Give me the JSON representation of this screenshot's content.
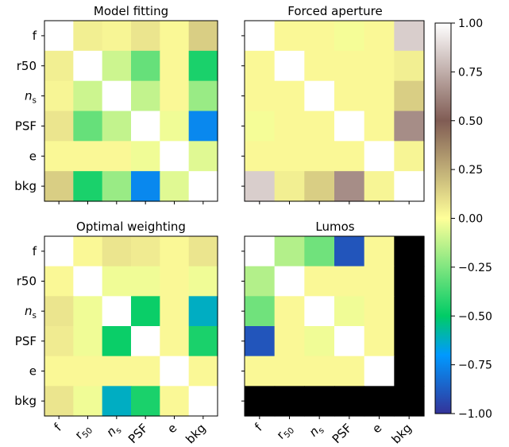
{
  "chart_data": {
    "type": "heatmap",
    "colormap": "terrain",
    "colorbar": {
      "vmin": -1.0,
      "vmax": 1.0,
      "tick_labels": [
        "1.00",
        "0.75",
        "0.50",
        "0.25",
        "0.00",
        "−0.25",
        "−0.50",
        "−0.75",
        "−1.00"
      ],
      "tick_values": [
        1.0,
        0.75,
        0.5,
        0.25,
        0.0,
        -0.25,
        -0.5,
        -0.75,
        -1.0
      ]
    },
    "row_labels": [
      "f",
      "r50",
      "n_s",
      "PSF",
      "e",
      "bkg"
    ],
    "col_labels": [
      "f",
      "r_50",
      "n_s",
      "PSF",
      "e",
      "bkg"
    ],
    "panels": [
      {
        "title": "Model fitting",
        "matrix": [
          [
            1.0,
            0.05,
            0.03,
            0.08,
            0.02,
            0.15
          ],
          [
            0.05,
            1.0,
            -0.1,
            -0.3,
            0.02,
            -0.45
          ],
          [
            0.03,
            -0.1,
            1.0,
            -0.12,
            0.02,
            -0.2
          ],
          [
            0.08,
            -0.3,
            -0.12,
            1.0,
            -0.03,
            -0.75
          ],
          [
            0.02,
            0.02,
            0.02,
            -0.03,
            1.0,
            -0.06
          ],
          [
            0.15,
            -0.45,
            -0.2,
            -0.75,
            -0.06,
            1.0
          ]
        ]
      },
      {
        "title": "Forced aperture",
        "matrix": [
          [
            1.0,
            0.02,
            0.02,
            -0.02,
            0.02,
            0.85
          ],
          [
            0.02,
            1.0,
            0.02,
            0.02,
            0.02,
            0.05
          ],
          [
            0.02,
            0.02,
            1.0,
            0.02,
            0.02,
            0.15
          ],
          [
            -0.02,
            0.02,
            0.02,
            1.0,
            0.02,
            0.65
          ],
          [
            0.02,
            0.02,
            0.02,
            0.02,
            1.0,
            0.03
          ],
          [
            0.85,
            0.05,
            0.15,
            0.65,
            0.03,
            1.0
          ]
        ]
      },
      {
        "title": "Optimal weighting",
        "matrix": [
          [
            1.0,
            0.02,
            0.08,
            0.06,
            0.02,
            0.08
          ],
          [
            0.02,
            1.0,
            -0.03,
            -0.03,
            0.02,
            -0.03
          ],
          [
            0.08,
            -0.03,
            1.0,
            -0.48,
            0.02,
            -0.62
          ],
          [
            0.06,
            -0.03,
            -0.48,
            1.0,
            0.02,
            -0.45
          ],
          [
            0.02,
            0.02,
            0.02,
            0.02,
            1.0,
            0.02
          ],
          [
            0.08,
            -0.03,
            -0.62,
            -0.45,
            0.02,
            1.0
          ]
        ]
      },
      {
        "title": "Lumos",
        "masked_value": "NaN",
        "matrix": [
          [
            1.0,
            -0.15,
            -0.28,
            -0.9,
            0.02,
            "NaN"
          ],
          [
            -0.15,
            1.0,
            0.02,
            0.02,
            0.02,
            "NaN"
          ],
          [
            -0.28,
            0.02,
            1.0,
            -0.03,
            0.02,
            "NaN"
          ],
          [
            -0.9,
            0.02,
            -0.03,
            1.0,
            0.02,
            "NaN"
          ],
          [
            0.02,
            0.02,
            0.02,
            0.02,
            1.0,
            "NaN"
          ],
          [
            "NaN",
            "NaN",
            "NaN",
            "NaN",
            "NaN",
            "NaN"
          ]
        ]
      }
    ],
    "grid": false,
    "legend": "colorbar right"
  }
}
